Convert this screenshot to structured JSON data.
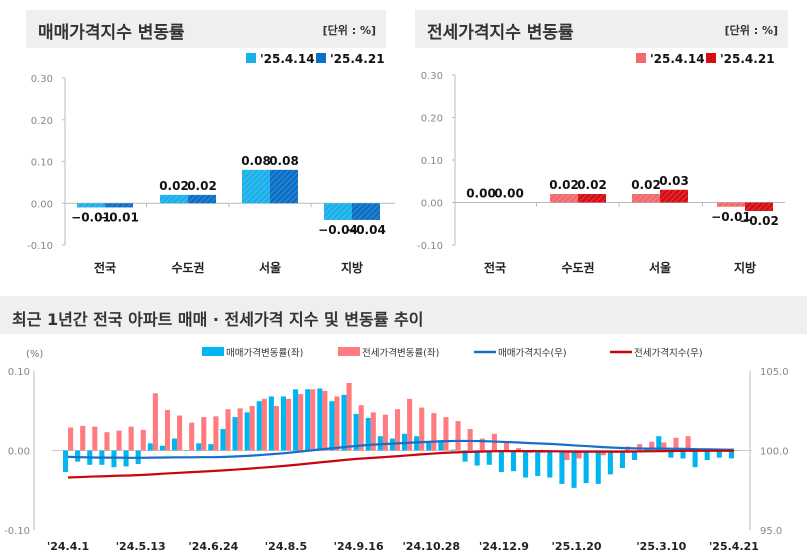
{
  "chart_data": [
    {
      "type": "bar",
      "title": "매매가격지수 변동률",
      "unit": "[단위 : %]",
      "categories": [
        "전국",
        "수도권",
        "서울",
        "지방"
      ],
      "series": [
        {
          "name": "'25.4.14",
          "values": [
            -0.01,
            0.02,
            0.08,
            -0.04
          ],
          "color": "#1ab0ea"
        },
        {
          "name": "'25.4.21",
          "values": [
            -0.01,
            0.02,
            0.08,
            -0.04
          ],
          "color": "#0b6fc8"
        }
      ],
      "ylim": [
        -0.1,
        0.3
      ],
      "yticks": [
        "0.30",
        "0.20",
        "0.10",
        "0.00",
        "-0.10"
      ]
    },
    {
      "type": "bar",
      "title": "전세가격지수 변동률",
      "unit": "[단위 : %]",
      "categories": [
        "전국",
        "수도권",
        "서울",
        "지방"
      ],
      "series": [
        {
          "name": "'25.4.14",
          "values": [
            0.0,
            0.02,
            0.02,
            -0.01
          ],
          "color": "#f26a6e"
        },
        {
          "name": "'25.4.21",
          "values": [
            0.0,
            0.02,
            0.03,
            -0.02
          ],
          "color": "#d60e14"
        }
      ],
      "ylim": [
        -0.1,
        0.3
      ],
      "yticks": [
        "0.30",
        "0.20",
        "0.10",
        "0.00",
        "-0.10"
      ]
    },
    {
      "type": "bar+line",
      "title": "최근 1년간 전국 아파트 매매 · 전세가격 지수 및 변동률 추이",
      "ylabel": "(%)",
      "ylim": [
        -0.1,
        0.1
      ],
      "yticks": [
        "0.10",
        "0.00",
        "-0.10"
      ],
      "y2lim": [
        95.0,
        105.0
      ],
      "y2ticks": [
        "105.0",
        "100.0",
        "95.0"
      ],
      "xticks": [
        "'24.4.1",
        "'24.5.13",
        "'24.6.24",
        "'24.8.5",
        "'24.9.16",
        "'24.10.28",
        "'24.12.9",
        "'25.1.20",
        "'25.3.10",
        "'25.4.21"
      ],
      "series": [
        {
          "name": "매매가격변동률(좌)",
          "type": "bar",
          "color": "#00b6f0",
          "values": [
            -0.027,
            -0.014,
            -0.018,
            -0.018,
            -0.021,
            -0.02,
            -0.017,
            0.009,
            0.006,
            0.015,
            0.0,
            0.009,
            0.008,
            0.027,
            0.042,
            0.048,
            0.062,
            0.068,
            0.068,
            0.077,
            0.077,
            0.078,
            0.062,
            0.07,
            0.046,
            0.041,
            0.018,
            0.015,
            0.021,
            0.018,
            0.011,
            0.013,
            0.001,
            -0.014,
            -0.019,
            -0.018,
            -0.027,
            -0.026,
            -0.034,
            -0.032,
            -0.034,
            -0.042,
            -0.047,
            -0.041,
            -0.042,
            -0.03,
            -0.022,
            -0.012,
            0.002,
            0.018,
            -0.009,
            -0.01,
            -0.021,
            -0.012,
            -0.009,
            -0.01
          ]
        },
        {
          "name": "전세가격변동률(좌)",
          "type": "bar",
          "color": "#ff7b80",
          "values": [
            0.029,
            0.031,
            0.03,
            0.023,
            0.025,
            0.03,
            0.026,
            0.072,
            0.051,
            0.044,
            0.035,
            0.042,
            0.043,
            0.052,
            0.053,
            0.056,
            0.065,
            0.056,
            0.065,
            0.071,
            0.077,
            0.075,
            0.068,
            0.085,
            0.057,
            0.048,
            0.045,
            0.052,
            0.065,
            0.054,
            0.047,
            0.042,
            0.037,
            0.027,
            0.015,
            0.021,
            0.01,
            0.003,
            -0.003,
            -0.003,
            0.0,
            -0.012,
            -0.01,
            0.0,
            -0.006,
            -0.003,
            0.005,
            0.008,
            0.011,
            0.01,
            0.016,
            0.018,
            0.0,
            0.002,
            0.0,
            0.0
          ]
        },
        {
          "name": "매매가격지수(우)",
          "type": "line",
          "color": "#1a6fc4",
          "values": [
            99.6,
            99.58,
            99.56,
            99.55,
            99.55,
            99.54,
            99.54,
            99.55,
            99.56,
            99.57,
            99.57,
            99.58,
            99.58,
            99.6,
            99.63,
            99.67,
            99.72,
            99.78,
            99.84,
            99.92,
            100.0,
            100.08,
            100.15,
            100.23,
            100.3,
            100.36,
            100.4,
            100.44,
            100.48,
            100.52,
            100.55,
            100.58,
            100.6,
            100.6,
            100.59,
            100.57,
            100.54,
            100.51,
            100.47,
            100.44,
            100.41,
            100.36,
            100.31,
            100.27,
            100.22,
            100.18,
            100.15,
            100.13,
            100.12,
            100.12,
            100.11,
            100.1,
            100.08,
            100.07,
            100.06,
            100.05
          ]
        },
        {
          "name": "전세가격지수(우)",
          "type": "line",
          "color": "#c8060c",
          "values": [
            98.3,
            98.33,
            98.36,
            98.38,
            98.41,
            98.43,
            98.46,
            98.5,
            98.55,
            98.59,
            98.63,
            98.67,
            98.71,
            98.76,
            98.81,
            98.86,
            98.92,
            98.98,
            99.04,
            99.11,
            99.19,
            99.27,
            99.34,
            99.42,
            99.48,
            99.53,
            99.58,
            99.63,
            99.69,
            99.75,
            99.8,
            99.85,
            99.88,
            99.91,
            99.93,
            99.95,
            99.96,
            99.96,
            99.96,
            99.96,
            99.95,
            99.94,
            99.93,
            99.93,
            99.93,
            99.93,
            99.93,
            99.94,
            99.95,
            99.96,
            99.97,
            99.98,
            99.98,
            99.98,
            99.98,
            99.98
          ]
        }
      ]
    }
  ]
}
